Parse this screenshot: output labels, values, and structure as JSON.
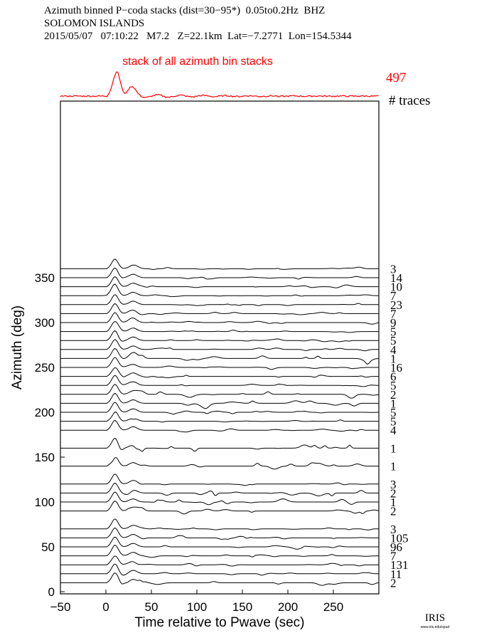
{
  "header": {
    "line1": "Azimuth binned P−coda stacks (dist=30−95*)  0.05to0.2Hz  BHZ",
    "line2": "SOLOMON ISLANDS",
    "line3": "2015/05/07   07:10:22   M7.2   Z=22.1km  Lat=−7.2771  Lon=154.5344"
  },
  "logo": {
    "text": "IRIS",
    "subtext": "www.iris.edu/spud"
  },
  "colors": {
    "summary": "#ff0000",
    "traces": "#000000",
    "axes": "#000000"
  },
  "chart_data": [
    {
      "type": "line",
      "title": "stack of all azimuth bin stacks",
      "trace_count": "497",
      "count_header": "# traces",
      "note": "summary stack trace above the main panel"
    },
    {
      "type": "line",
      "xlabel": "Time relative to Pwave (sec)",
      "ylabel": "Azimuth (deg)",
      "xlim": [
        -50,
        300
      ],
      "ylim": [
        0,
        380
      ],
      "xticks": [
        -50,
        0,
        50,
        100,
        150,
        200,
        250
      ],
      "yticks": [
        0,
        50,
        100,
        150,
        200,
        250,
        300,
        350
      ],
      "series": [
        {
          "azimuth": 360,
          "count": "3"
        },
        {
          "azimuth": 350,
          "count": "14"
        },
        {
          "azimuth": 340,
          "count": "10"
        },
        {
          "azimuth": 330,
          "count": "7"
        },
        {
          "azimuth": 320,
          "count": "23"
        },
        {
          "azimuth": 310,
          "count": "7"
        },
        {
          "azimuth": 300,
          "count": "9"
        },
        {
          "azimuth": 290,
          "count": "5"
        },
        {
          "azimuth": 280,
          "count": "5"
        },
        {
          "azimuth": 270,
          "count": "4"
        },
        {
          "azimuth": 260,
          "count": "1"
        },
        {
          "azimuth": 250,
          "count": "16"
        },
        {
          "azimuth": 240,
          "count": "6"
        },
        {
          "azimuth": 230,
          "count": "5"
        },
        {
          "azimuth": 220,
          "count": "2"
        },
        {
          "azimuth": 210,
          "count": "1"
        },
        {
          "azimuth": 200,
          "count": "5"
        },
        {
          "azimuth": 190,
          "count": "5"
        },
        {
          "azimuth": 180,
          "count": "4"
        },
        {
          "azimuth": 160,
          "count": "1"
        },
        {
          "azimuth": 140,
          "count": "1"
        },
        {
          "azimuth": 120,
          "count": "3"
        },
        {
          "azimuth": 110,
          "count": "2"
        },
        {
          "azimuth": 100,
          "count": "1"
        },
        {
          "azimuth": 90,
          "count": "2"
        },
        {
          "azimuth": 70,
          "count": "3"
        },
        {
          "azimuth": 60,
          "count": "105"
        },
        {
          "azimuth": 50,
          "count": "96"
        },
        {
          "azimuth": 40,
          "count": "7"
        },
        {
          "azimuth": 30,
          "count": "131"
        },
        {
          "azimuth": 20,
          "count": "11"
        },
        {
          "azimuth": 10,
          "count": "2"
        }
      ]
    }
  ]
}
